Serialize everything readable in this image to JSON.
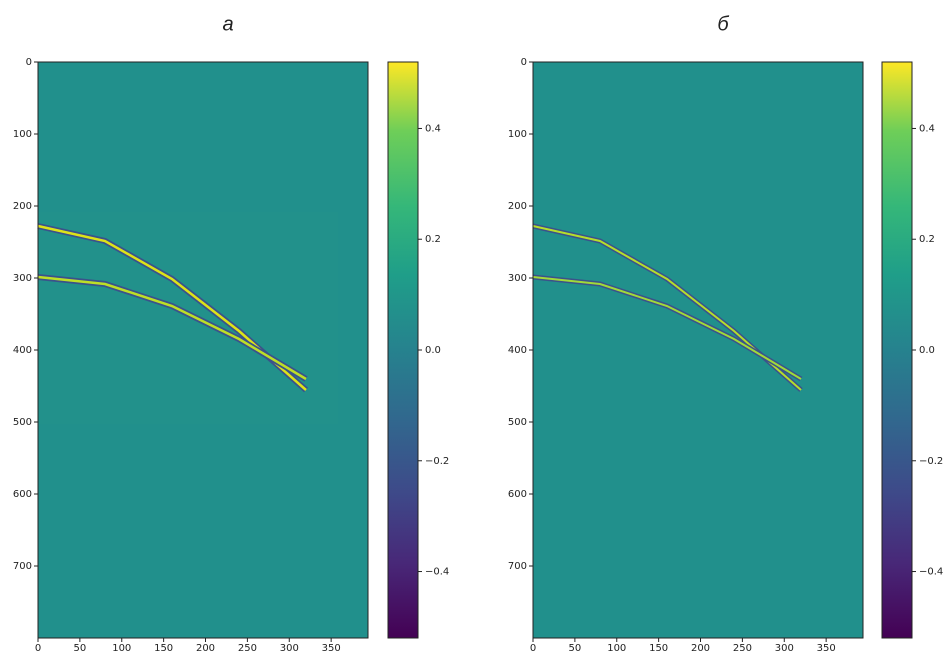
{
  "chart_data": [
    {
      "type": "heatmap",
      "title": "а",
      "xlim": [
        0,
        394
      ],
      "ylim": [
        800,
        0
      ],
      "xticks": [
        0,
        50,
        100,
        150,
        200,
        250,
        300,
        350
      ],
      "yticks": [
        0,
        100,
        200,
        300,
        400,
        500,
        600,
        700
      ],
      "colorbar": {
        "clim": [
          -0.52,
          0.52
        ],
        "ticks": [
          {
            "value": -0.4,
            "label": "−0.4"
          },
          {
            "value": -0.2,
            "label": "−0.2"
          },
          {
            "value": 0,
            "label": "0.0"
          },
          0.2,
          0.4
        ]
      }
    },
    {
      "type": "heatmap",
      "title": "б",
      "xlim": [
        0,
        394
      ],
      "ylim": [
        800,
        0
      ],
      "xticks": [
        0,
        50,
        100,
        150,
        200,
        250,
        300,
        350
      ],
      "yticks": [
        0,
        100,
        200,
        300,
        400,
        500,
        600,
        700
      ],
      "colorbar": {
        "clim": [
          -0.52,
          0.52
        ],
        "ticks": [
          {
            "value": -0.4,
            "label": "−0.4"
          },
          {
            "value": -0.2,
            "label": "−0.2"
          },
          {
            "value": 0,
            "label": "0.0"
          },
          0.2,
          0.4
        ]
      }
    }
  ]
}
